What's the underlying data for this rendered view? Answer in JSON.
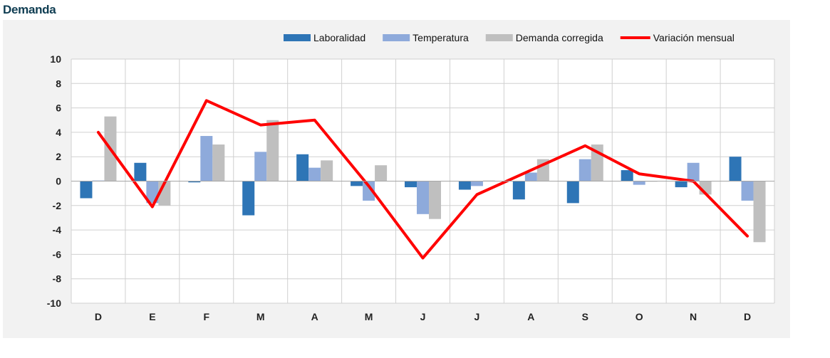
{
  "header": {
    "title": "Demanda"
  },
  "chart_data": {
    "type": "bar",
    "title": "Demanda",
    "xlabel": "",
    "ylabel": "",
    "ylim": [
      -10,
      10
    ],
    "yticks": [
      10,
      8,
      6,
      4,
      2,
      0,
      -2,
      -4,
      -6,
      -8,
      -10
    ],
    "grid": true,
    "legend_position": "top-right",
    "categories": [
      "D",
      "E",
      "F",
      "M",
      "A",
      "M",
      "J",
      "J",
      "A",
      "S",
      "O",
      "N",
      "D"
    ],
    "series": [
      {
        "name": "Laboralidad",
        "kind": "bar",
        "color": "#2e75b6",
        "values": [
          -1.4,
          1.5,
          -0.1,
          -2.8,
          2.2,
          -0.4,
          -0.5,
          -0.7,
          -1.5,
          -1.8,
          0.9,
          -0.5,
          2.0
        ]
      },
      {
        "name": "Temperatura",
        "kind": "bar",
        "color": "#8eaadb",
        "values": [
          0.05,
          -1.8,
          3.7,
          2.4,
          1.1,
          -1.6,
          -2.7,
          -0.4,
          0.7,
          1.8,
          -0.3,
          1.5,
          -1.6
        ]
      },
      {
        "name": "Demanda corregida",
        "kind": "bar",
        "color": "#bfbfbf",
        "values": [
          5.3,
          -2.0,
          3.0,
          5.0,
          1.7,
          1.3,
          -3.1,
          0.05,
          1.8,
          3.0,
          0.0,
          -1.1,
          -5.0
        ]
      },
      {
        "name": "Variación mensual",
        "kind": "line",
        "color": "#ff0000",
        "values": [
          4.0,
          -2.1,
          6.6,
          4.6,
          5.0,
          -0.4,
          -6.3,
          -1.1,
          0.9,
          2.9,
          0.6,
          0.0,
          -4.5
        ]
      }
    ]
  }
}
